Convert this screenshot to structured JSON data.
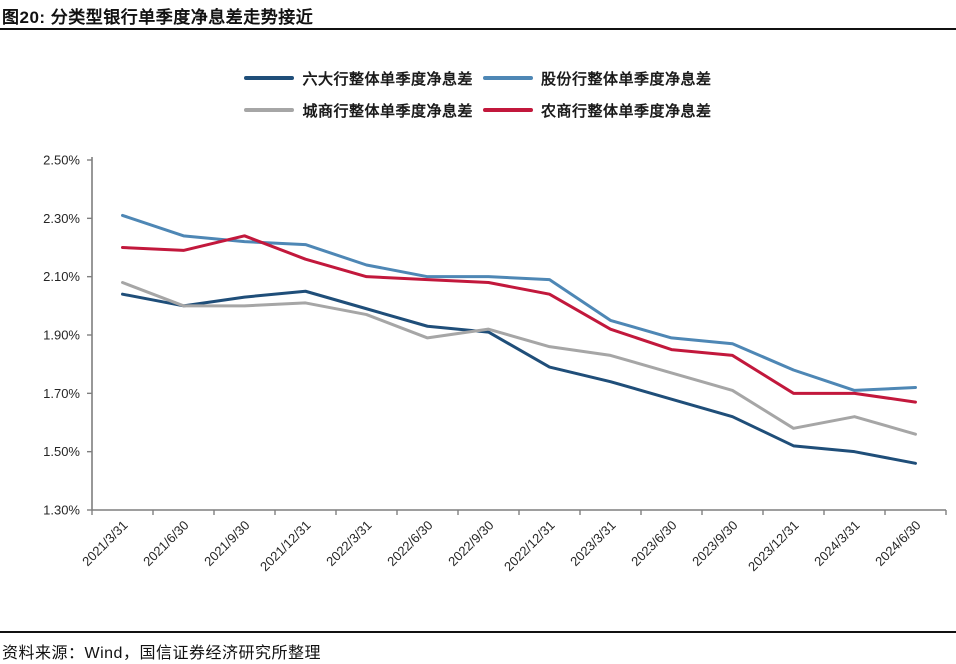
{
  "header": {
    "title": "图20: 分类型银行单季度净息差走势接近"
  },
  "footer": {
    "source": "资料来源：Wind，国信证券经济研究所整理"
  },
  "chart_data": {
    "type": "line",
    "title": "图20: 分类型银行单季度净息差走势接近",
    "xlabel": "",
    "ylabel": "",
    "grid": false,
    "legend_position": "top",
    "legend_rows": [
      [
        0,
        1
      ],
      [
        2,
        3
      ]
    ],
    "ylim": [
      1.3,
      2.5
    ],
    "ytick_step": 0.2,
    "ytick_suffix": "%",
    "axis_color": "#7f7f7f",
    "tick_label_color": "#262626",
    "categories": [
      "2021/3/31",
      "2021/6/30",
      "2021/9/30",
      "2021/12/31",
      "2022/3/31",
      "2022/6/30",
      "2022/9/30",
      "2022/12/31",
      "2023/3/31",
      "2023/6/30",
      "2023/9/30",
      "2023/12/31",
      "2024/3/31",
      "2024/6/30"
    ],
    "series": [
      {
        "name": "六大行整体单季度净息差",
        "color": "#1F4E79",
        "values": [
          2.04,
          2.0,
          2.03,
          2.05,
          1.99,
          1.93,
          1.91,
          1.79,
          1.74,
          1.68,
          1.62,
          1.52,
          1.5,
          1.46
        ]
      },
      {
        "name": "股份行整体单季度净息差",
        "color": "#4E87B5",
        "values": [
          2.31,
          2.24,
          2.22,
          2.21,
          2.14,
          2.1,
          2.1,
          2.09,
          1.95,
          1.89,
          1.87,
          1.78,
          1.71,
          1.72
        ]
      },
      {
        "name": "城商行整体单季度净息差",
        "color": "#A6A6A6",
        "values": [
          2.08,
          2.0,
          2.0,
          2.01,
          1.97,
          1.89,
          1.92,
          1.86,
          1.83,
          1.77,
          1.71,
          1.58,
          1.62,
          1.56
        ]
      },
      {
        "name": "农商行整体单季度净息差",
        "color": "#C2183C",
        "values": [
          2.2,
          2.19,
          2.24,
          2.16,
          2.1,
          2.09,
          2.08,
          2.04,
          1.92,
          1.85,
          1.83,
          1.7,
          1.7,
          1.67
        ]
      }
    ]
  }
}
